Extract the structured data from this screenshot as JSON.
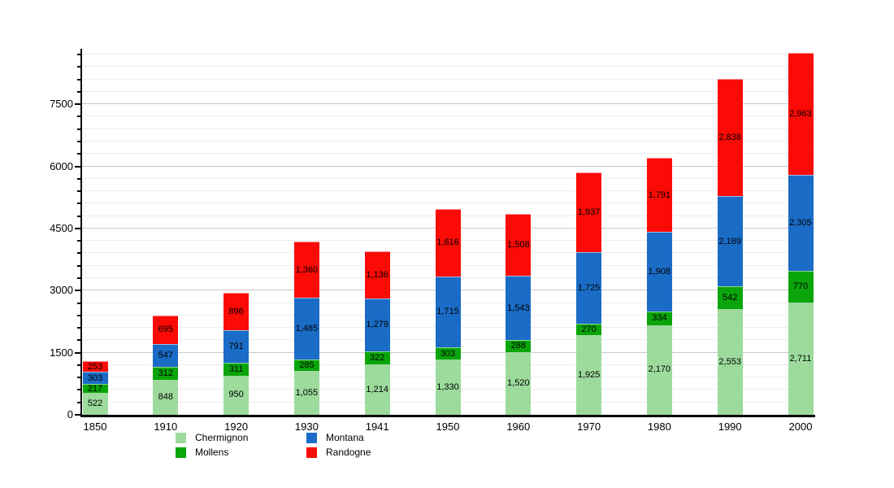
{
  "chart_data": {
    "type": "bar",
    "stacked": true,
    "title": "",
    "xlabel": "",
    "ylabel": "",
    "categories": [
      "1850",
      "1910",
      "1920",
      "1930",
      "1941",
      "1950",
      "1960",
      "1970",
      "1980",
      "1990",
      "2000"
    ],
    "series": [
      {
        "name": "Chermignon",
        "color": "#9cdb9c",
        "values": [
          522,
          848,
          950,
          1055,
          1214,
          1330,
          1520,
          1925,
          2170,
          2553,
          2711
        ]
      },
      {
        "name": "Mollens",
        "color": "#0aa50a",
        "values": [
          217,
          312,
          311,
          285,
          322,
          303,
          288,
          270,
          334,
          542,
          770
        ]
      },
      {
        "name": "Montana",
        "color": "#1a6cc6",
        "values": [
          303,
          547,
          791,
          1485,
          1279,
          1715,
          1543,
          1725,
          1908,
          2189,
          2305
        ]
      },
      {
        "name": "Randogne",
        "color": "#fa0b05",
        "values": [
          253,
          695,
          896,
          1360,
          1136,
          1616,
          1508,
          1937,
          1791,
          2838,
          2963
        ]
      }
    ],
    "ylim": [
      0,
      8800
    ],
    "yticks_major": [
      0,
      1500,
      3000,
      4500,
      6000,
      7500
    ],
    "ytick_minor_step": 300,
    "grid": true,
    "legend_position": "bottom",
    "legend_columns": [
      [
        "Chermignon",
        "Mollens"
      ],
      [
        "Montana",
        "Randogne"
      ]
    ],
    "bar_value_labels_shown": true
  }
}
